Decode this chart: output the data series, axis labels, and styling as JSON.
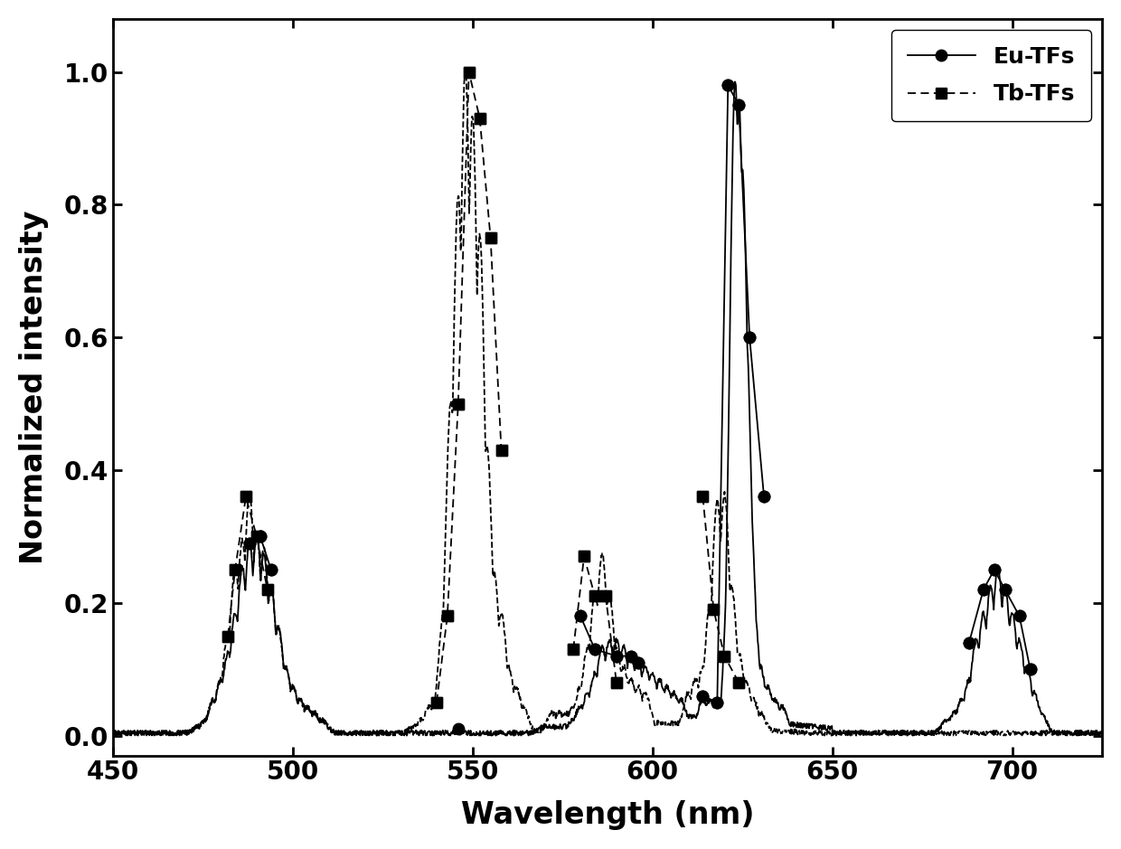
{
  "xlabel": "Wavelength (nm)",
  "ylabel": "Normalized intensity",
  "xlim": [
    450,
    725
  ],
  "ylim": [
    -0.03,
    1.08
  ],
  "xticks": [
    450,
    500,
    550,
    600,
    650,
    700
  ],
  "yticks": [
    0.0,
    0.2,
    0.4,
    0.6,
    0.8,
    1.0
  ],
  "eu_label": "Eu-TFs",
  "tb_label": "Tb-TFs",
  "background_color": "#ffffff",
  "line_color": "#000000",
  "eu_markers_x": [
    488,
    491,
    494,
    546,
    580,
    584,
    590,
    594,
    596,
    614,
    618,
    621,
    624,
    627,
    631,
    688,
    692,
    695,
    698,
    702,
    705
  ],
  "eu_markers_y": [
    0.29,
    0.3,
    0.25,
    0.01,
    0.18,
    0.13,
    0.12,
    0.12,
    0.11,
    0.06,
    0.05,
    0.98,
    0.95,
    0.6,
    0.36,
    0.14,
    0.22,
    0.25,
    0.22,
    0.18,
    0.1
  ],
  "tb_markers_x": [
    482,
    484,
    487,
    490,
    493,
    540,
    543,
    546,
    549,
    552,
    555,
    558,
    578,
    581,
    584,
    587,
    590,
    614,
    617,
    620,
    624
  ],
  "tb_markers_y": [
    0.15,
    0.25,
    0.36,
    0.3,
    0.22,
    0.05,
    0.18,
    0.5,
    1.0,
    0.93,
    0.75,
    0.43,
    0.13,
    0.27,
    0.21,
    0.21,
    0.08,
    0.36,
    0.19,
    0.12,
    0.08
  ],
  "eu_dense_x_peaks": [
    [
      474,
      476,
      478,
      480,
      482,
      484,
      486,
      488,
      490,
      492,
      494,
      496,
      498,
      500,
      502,
      504,
      506,
      508
    ],
    [
      570,
      572,
      574,
      576,
      578,
      580,
      582,
      584,
      586,
      588,
      590,
      592,
      594,
      596,
      598,
      600,
      602,
      604,
      606,
      608
    ],
    [
      614,
      616,
      618,
      620,
      621,
      622,
      623,
      624,
      625,
      626,
      627,
      628,
      630,
      632,
      634,
      636
    ],
    [
      682,
      684,
      686,
      688,
      690,
      692,
      694,
      696,
      698,
      700,
      702,
      704,
      706,
      708
    ]
  ],
  "eu_dense_y_peaks": [
    [
      0.01,
      0.02,
      0.05,
      0.08,
      0.12,
      0.18,
      0.25,
      0.29,
      0.3,
      0.27,
      0.22,
      0.16,
      0.1,
      0.07,
      0.05,
      0.04,
      0.03,
      0.02
    ],
    [
      0.01,
      0.01,
      0.01,
      0.01,
      0.02,
      0.04,
      0.06,
      0.09,
      0.13,
      0.14,
      0.14,
      0.13,
      0.12,
      0.11,
      0.1,
      0.09,
      0.08,
      0.07,
      0.06,
      0.05
    ],
    [
      0.05,
      0.05,
      0.05,
      0.06,
      0.1,
      0.37,
      0.98,
      0.95,
      0.85,
      0.6,
      0.36,
      0.2,
      0.1,
      0.07,
      0.05,
      0.04
    ],
    [
      0.02,
      0.03,
      0.05,
      0.08,
      0.14,
      0.18,
      0.22,
      0.25,
      0.22,
      0.18,
      0.14,
      0.1,
      0.06,
      0.03
    ]
  ],
  "tb_dense_x_peaks": [
    [
      474,
      476,
      478,
      480,
      482,
      484,
      486,
      488,
      490,
      492,
      494,
      496,
      498,
      500,
      502,
      504,
      506,
      508
    ],
    [
      534,
      536,
      538,
      540,
      542,
      544,
      546,
      548,
      550,
      552,
      554,
      556,
      558,
      560,
      562,
      564
    ],
    [
      572,
      574,
      576,
      578,
      580,
      582,
      584,
      586,
      588,
      590,
      592,
      594,
      596,
      598
    ],
    [
      610,
      612,
      614,
      616,
      618,
      620,
      622,
      624,
      626,
      628,
      630
    ]
  ],
  "tb_dense_y_peaks": [
    [
      0.01,
      0.02,
      0.05,
      0.08,
      0.15,
      0.25,
      0.29,
      0.36,
      0.3,
      0.28,
      0.22,
      0.16,
      0.1,
      0.07,
      0.05,
      0.04,
      0.03,
      0.02
    ],
    [
      0.01,
      0.02,
      0.04,
      0.05,
      0.18,
      0.5,
      0.81,
      1.0,
      0.93,
      0.75,
      0.43,
      0.24,
      0.18,
      0.1,
      0.07,
      0.04
    ],
    [
      0.03,
      0.03,
      0.03,
      0.04,
      0.07,
      0.13,
      0.21,
      0.27,
      0.21,
      0.13,
      0.1,
      0.08,
      0.07,
      0.06
    ],
    [
      0.06,
      0.08,
      0.1,
      0.19,
      0.35,
      0.36,
      0.22,
      0.12,
      0.08,
      0.05,
      0.03
    ]
  ]
}
